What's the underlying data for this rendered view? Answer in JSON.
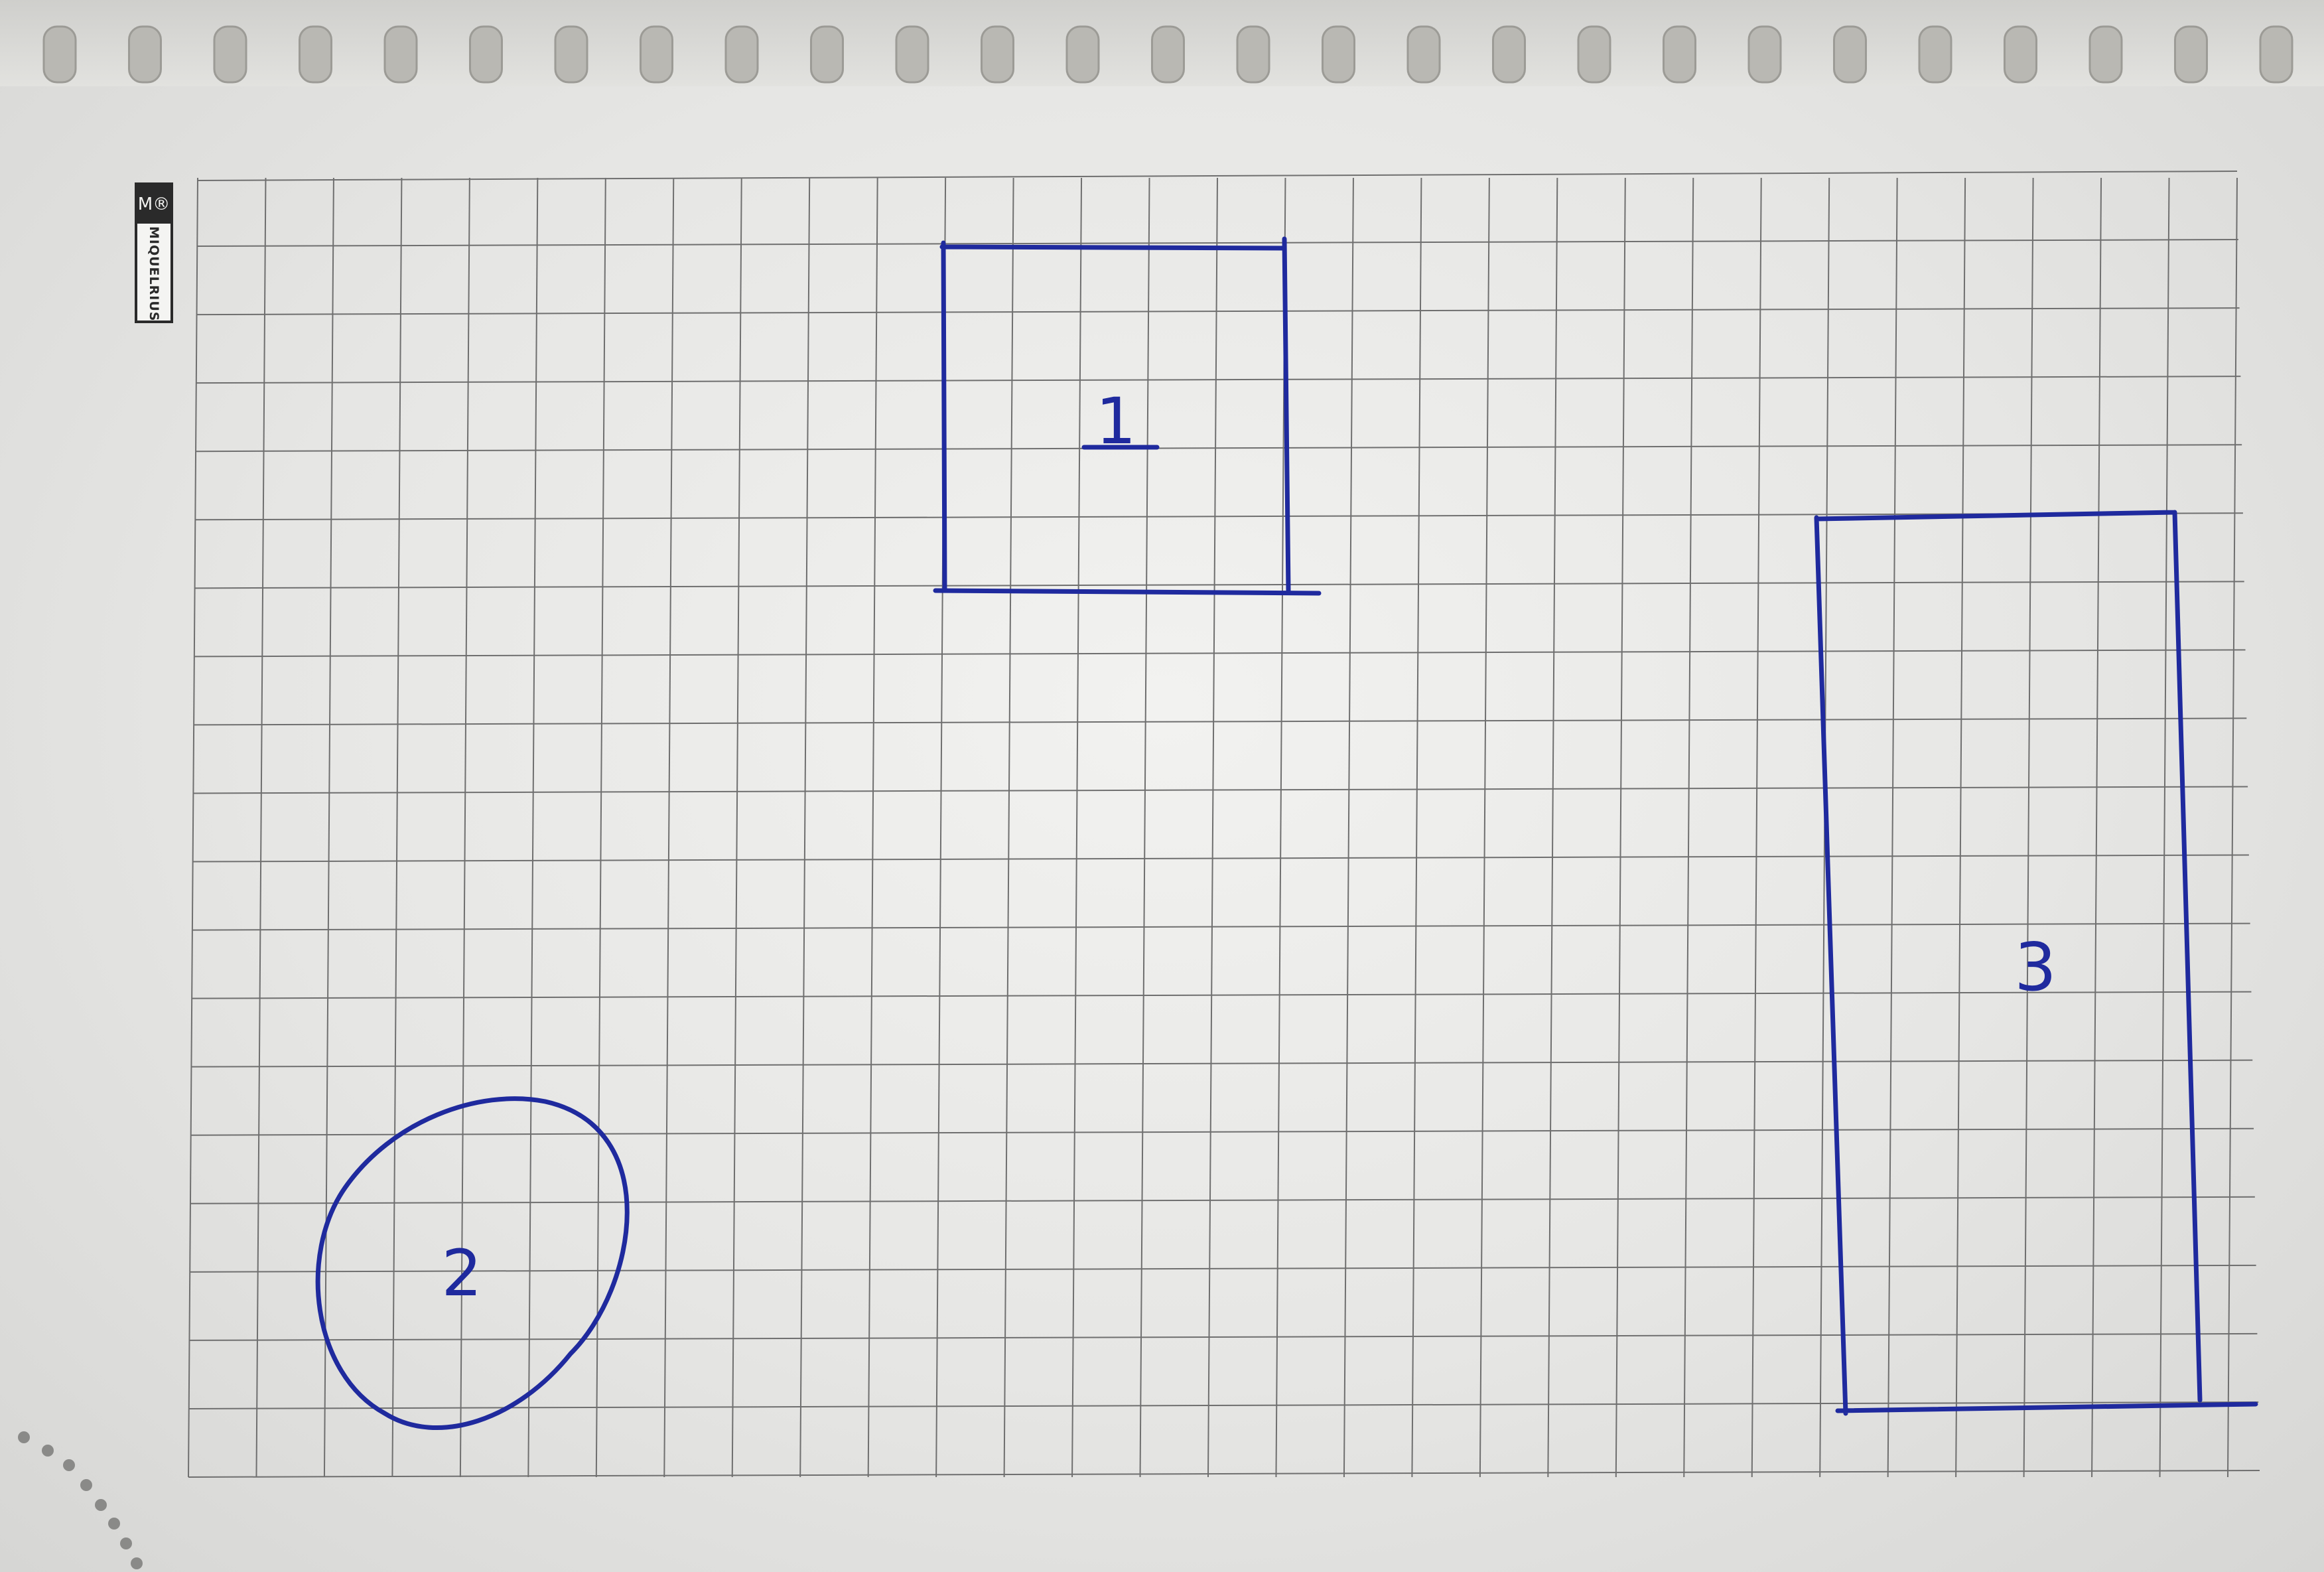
{
  "brand": {
    "logo_text": "M®",
    "name": "MIQUELRIUS"
  },
  "drawing": {
    "ink_color": "#1f2a9e",
    "grid_color": "#6f6f6f",
    "paper_color": "#ecece9",
    "grid": {
      "columns": 30,
      "rows": 19
    },
    "shapes": [
      {
        "id": "square",
        "label": "1"
      },
      {
        "id": "circle",
        "label": "2"
      },
      {
        "id": "rectangle",
        "label": "3"
      }
    ]
  }
}
